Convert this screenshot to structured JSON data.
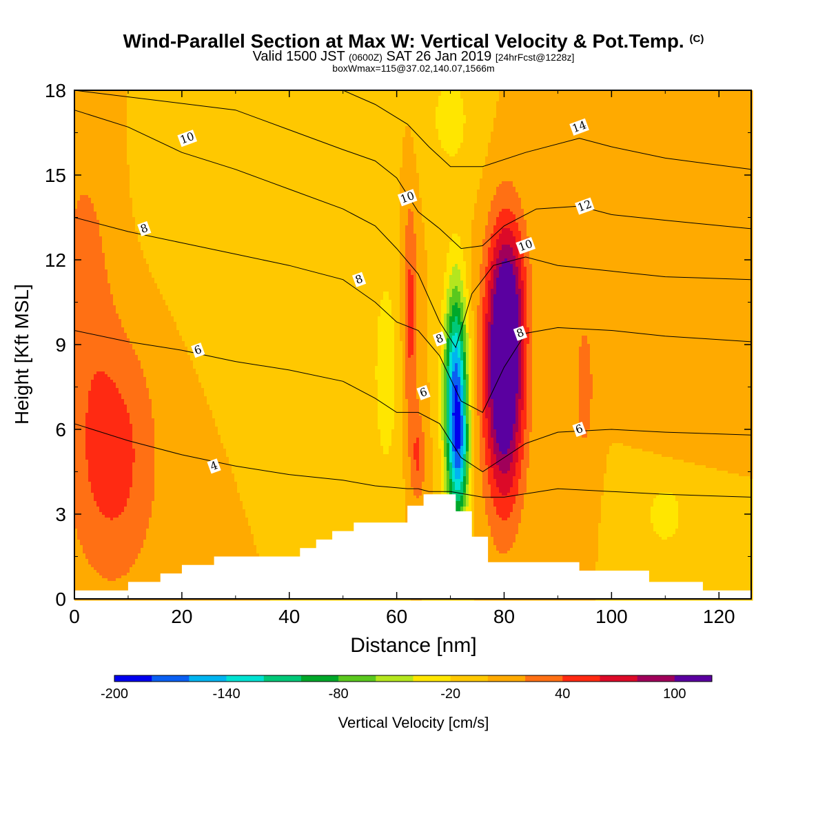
{
  "title": {
    "main": "Wind-Parallel Section at Max W: Vertical Velocity & Pot.Temp.",
    "copyright": "(C)",
    "valid_prefix": "Valid 1500 JST",
    "valid_z": "(0600Z)",
    "valid_date": "SAT 26 Jan 2019",
    "forecast": "[24hrFcst@1228z]",
    "box_info": "boxWmax=115@37.02,140.07,1566m"
  },
  "chart_data": {
    "type": "heatmap",
    "xlabel": "Distance [nm]",
    "ylabel": "Height [Kft MSL]",
    "xlim": [
      0,
      126
    ],
    "ylim": [
      0,
      18
    ],
    "x_ticks": [
      "0",
      "20",
      "40",
      "60",
      "80",
      "100",
      "120"
    ],
    "y_ticks": [
      "0",
      "3",
      "6",
      "9",
      "12",
      "15",
      "18"
    ],
    "colorbar": {
      "label": "Vertical Velocity [cm/s]",
      "tick_labels": [
        "-200",
        "-140",
        "-80",
        "-20",
        "40",
        "100"
      ],
      "levels": [
        -200,
        -180,
        -160,
        -140,
        -120,
        -100,
        -80,
        -60,
        -40,
        -20,
        0,
        20,
        40,
        60,
        80,
        100,
        120
      ],
      "colors": [
        "#0000ee",
        "#0a5ff2",
        "#00b4f0",
        "#00e2d2",
        "#00c878",
        "#00a82a",
        "#5ac81e",
        "#b4e61e",
        "#ffe600",
        "#ffc800",
        "#ffaa00",
        "#ff7014",
        "#ff2a12",
        "#dc0a28",
        "#a0005a",
        "#5a00a0"
      ]
    },
    "terrain_nm_kft": [
      [
        0,
        0.3
      ],
      [
        10,
        0.3
      ],
      [
        10,
        0.6
      ],
      [
        16,
        0.6
      ],
      [
        16,
        0.9
      ],
      [
        20,
        0.9
      ],
      [
        20,
        1.2
      ],
      [
        26,
        1.2
      ],
      [
        26,
        1.5
      ],
      [
        42,
        1.5
      ],
      [
        42,
        1.8
      ],
      [
        45,
        1.8
      ],
      [
        45,
        2.1
      ],
      [
        48,
        2.1
      ],
      [
        48,
        2.4
      ],
      [
        52,
        2.4
      ],
      [
        52,
        2.7
      ],
      [
        62,
        2.7
      ],
      [
        62,
        3.3
      ],
      [
        65,
        3.3
      ],
      [
        65,
        3.7
      ],
      [
        71,
        3.7
      ],
      [
        71,
        3.1
      ],
      [
        74,
        3.1
      ],
      [
        74,
        2.2
      ],
      [
        77,
        2.2
      ],
      [
        77,
        1.3
      ],
      [
        94,
        1.3
      ],
      [
        94,
        1.0
      ],
      [
        107,
        1.0
      ],
      [
        107,
        0.6
      ],
      [
        117,
        0.6
      ],
      [
        117,
        0.3
      ],
      [
        126,
        0.3
      ]
    ],
    "vertical_velocity_features": [
      {
        "x": 71,
        "y": 7.0,
        "value": -140
      },
      {
        "x": 80,
        "y": 8.0,
        "value": 115
      },
      {
        "x": 62,
        "y": 10.0,
        "value": 40
      },
      {
        "x": 7,
        "y": 5.0,
        "value": 40
      },
      {
        "x": 58,
        "y": 8.0,
        "value": -20
      },
      {
        "x": 110,
        "y": 3.0,
        "value": -20
      },
      {
        "x": 70,
        "y": 17.0,
        "value": -20
      },
      {
        "x": 95,
        "y": 7.5,
        "value": 30
      }
    ],
    "isentropes": [
      {
        "label": "4",
        "points": [
          [
            0,
            6.2
          ],
          [
            10,
            5.6
          ],
          [
            20,
            5.1
          ],
          [
            30,
            4.7
          ],
          [
            40,
            4.4
          ],
          [
            50,
            4.2
          ],
          [
            56,
            4.0
          ],
          [
            62,
            3.9
          ],
          [
            64,
            3.9
          ],
          [
            66,
            3.8
          ],
          [
            70,
            3.8
          ],
          [
            76,
            3.6
          ],
          [
            80,
            3.6
          ],
          [
            90,
            3.9
          ],
          [
            100,
            3.8
          ],
          [
            110,
            3.7
          ],
          [
            126,
            3.6
          ]
        ]
      },
      {
        "label": "6",
        "points": [
          [
            0,
            9.5
          ],
          [
            10,
            9.1
          ],
          [
            20,
            8.8
          ],
          [
            30,
            8.4
          ],
          [
            40,
            8.1
          ],
          [
            50,
            7.7
          ],
          [
            56,
            7.1
          ],
          [
            60,
            6.6
          ],
          [
            64,
            6.6
          ],
          [
            68,
            6.2
          ],
          [
            72,
            5.0
          ],
          [
            76,
            4.5
          ],
          [
            80,
            5.0
          ],
          [
            84,
            5.5
          ],
          [
            90,
            5.9
          ],
          [
            100,
            6.0
          ],
          [
            110,
            5.9
          ],
          [
            126,
            5.8
          ]
        ]
      },
      {
        "label": "8",
        "points": [
          [
            0,
            13.5
          ],
          [
            10,
            13.0
          ],
          [
            20,
            12.6
          ],
          [
            30,
            12.2
          ],
          [
            40,
            11.8
          ],
          [
            50,
            11.3
          ],
          [
            56,
            10.5
          ],
          [
            60,
            9.8
          ],
          [
            64,
            9.5
          ],
          [
            68,
            8.6
          ],
          [
            72,
            7.0
          ],
          [
            76,
            6.6
          ],
          [
            80,
            8.2
          ],
          [
            84,
            9.4
          ],
          [
            90,
            9.6
          ],
          [
            100,
            9.5
          ],
          [
            110,
            9.3
          ],
          [
            126,
            9.1
          ]
        ]
      },
      {
        "label": "10",
        "points": [
          [
            0,
            17.3
          ],
          [
            10,
            16.7
          ],
          [
            20,
            15.8
          ],
          [
            30,
            15.2
          ],
          [
            40,
            14.5
          ],
          [
            50,
            13.8
          ],
          [
            56,
            13.2
          ],
          [
            60,
            12.4
          ],
          [
            64,
            11.5
          ],
          [
            68,
            9.8
          ],
          [
            71,
            8.9
          ],
          [
            74,
            10.8
          ],
          [
            78,
            11.8
          ],
          [
            84,
            12.1
          ],
          [
            90,
            11.8
          ],
          [
            100,
            11.6
          ],
          [
            110,
            11.4
          ],
          [
            126,
            11.3
          ]
        ]
      },
      {
        "label": "12",
        "points": [
          [
            0,
            18.0
          ],
          [
            30,
            17.3
          ],
          [
            40,
            16.6
          ],
          [
            50,
            15.9
          ],
          [
            56,
            15.5
          ],
          [
            60,
            14.9
          ],
          [
            64,
            13.7
          ],
          [
            68,
            13.1
          ],
          [
            72,
            12.4
          ],
          [
            76,
            12.5
          ],
          [
            80,
            13.2
          ],
          [
            86,
            13.8
          ],
          [
            94,
            13.9
          ],
          [
            100,
            13.6
          ],
          [
            110,
            13.4
          ],
          [
            126,
            13.1
          ]
        ]
      },
      {
        "label": "14",
        "points": [
          [
            50,
            18.0
          ],
          [
            56,
            17.5
          ],
          [
            62,
            16.8
          ],
          [
            66,
            16.0
          ],
          [
            70,
            15.3
          ],
          [
            76,
            15.3
          ],
          [
            84,
            15.8
          ],
          [
            94,
            16.3
          ],
          [
            100,
            16.0
          ],
          [
            110,
            15.6
          ],
          [
            126,
            15.2
          ]
        ]
      }
    ],
    "isentrope_labels": [
      {
        "text": "4",
        "x": 26,
        "y": 4.7
      },
      {
        "text": "6",
        "x": 23,
        "y": 8.8
      },
      {
        "text": "6",
        "x": 65,
        "y": 7.3
      },
      {
        "text": "6",
        "x": 94,
        "y": 6.0
      },
      {
        "text": "8",
        "x": 13,
        "y": 13.1
      },
      {
        "text": "8",
        "x": 53,
        "y": 11.3
      },
      {
        "text": "8",
        "x": 68,
        "y": 9.2
      },
      {
        "text": "8",
        "x": 83,
        "y": 9.4
      },
      {
        "text": "10",
        "x": 21,
        "y": 16.3
      },
      {
        "text": "10",
        "x": 62,
        "y": 14.2
      },
      {
        "text": "10",
        "x": 84,
        "y": 12.5
      },
      {
        "text": "12",
        "x": 95,
        "y": 13.9
      },
      {
        "text": "14",
        "x": 94,
        "y": 16.7
      }
    ]
  }
}
